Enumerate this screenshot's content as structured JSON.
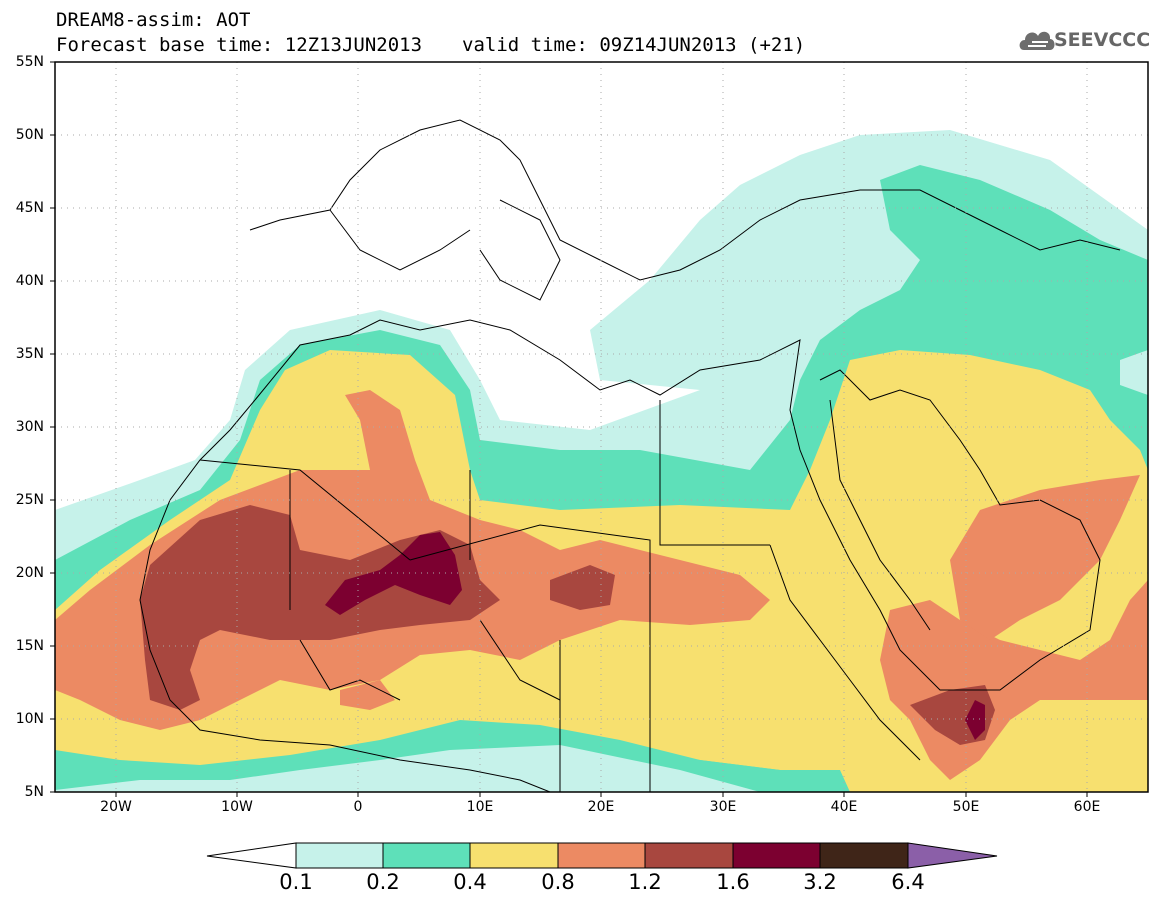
{
  "header": {
    "line1": "DREAM8-assim: AOT",
    "base_time": "Forecast base time: 12Z13JUN2013",
    "valid_time": "valid time: 09Z14JUN2013 (+21)",
    "logo_text": "SEEVCCC",
    "logo_icon": "cloud-icon"
  },
  "map": {
    "lat_labels": [
      "55N",
      "50N",
      "45N",
      "40N",
      "35N",
      "30N",
      "25N",
      "20N",
      "15N",
      "10N",
      "5N"
    ],
    "lon_labels": [
      "20W",
      "10W",
      "0",
      "10E",
      "20E",
      "30E",
      "40E",
      "50E",
      "60E"
    ],
    "extent": {
      "lon": [
        -25,
        65
      ],
      "lat": [
        5,
        55
      ]
    },
    "variable": "Aerosol Optical Thickness (AOT)"
  },
  "colorbar": {
    "thresholds": [
      "0.1",
      "0.2",
      "0.4",
      "0.8",
      "1.2",
      "1.6",
      "3.2",
      "6.4"
    ],
    "colors": [
      "#ffffff",
      "#c6f2ea",
      "#5ee0b9",
      "#f7e06f",
      "#ec8a63",
      "#a8473f",
      "#7c0030",
      "#3f2518",
      "#8b5fa8"
    ]
  },
  "legend_colors": {
    "c01": "#c6f2ea",
    "c02": "#5ee0b9",
    "c04": "#f7e06f",
    "c08": "#ec8a63",
    "c12": "#a8473f",
    "c16": "#7c0030",
    "c32": "#3f2518"
  }
}
